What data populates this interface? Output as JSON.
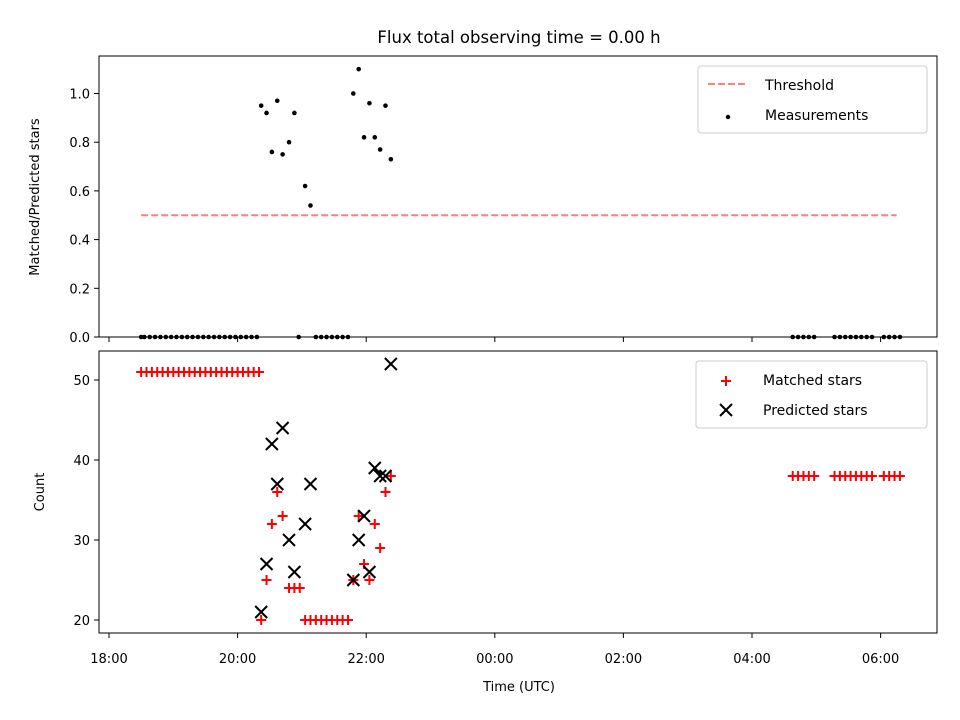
{
  "chart_data": [
    {
      "type": "scatter",
      "title": "Flux total observing time = 0.00 h",
      "xlabel": "",
      "ylabel": "Matched/Predicted stars",
      "ylim": [
        0,
        1.15
      ],
      "xlim": [
        "18:00",
        "06:50"
      ],
      "yticks": [
        "0.0",
        "0.2",
        "0.4",
        "0.6",
        "0.8",
        "1.0"
      ],
      "grid": false,
      "legend_position": "top-right",
      "legend": [
        "Threshold",
        "Measurements"
      ],
      "threshold": {
        "name": "Threshold",
        "y": 0.5,
        "x_start": "18:30",
        "x_end": "06:15",
        "color": "#ff7f7f"
      },
      "series": [
        {
          "name": "Measurements",
          "color": "#000000",
          "points": [
            [
              "18:30",
              0
            ],
            [
              "18:33",
              0
            ],
            [
              "18:38",
              0
            ],
            [
              "18:43",
              0
            ],
            [
              "18:48",
              0
            ],
            [
              "18:53",
              0
            ],
            [
              "18:58",
              0
            ],
            [
              "19:03",
              0
            ],
            [
              "19:08",
              0
            ],
            [
              "19:13",
              0
            ],
            [
              "19:18",
              0
            ],
            [
              "19:23",
              0
            ],
            [
              "19:28",
              0
            ],
            [
              "19:33",
              0
            ],
            [
              "19:38",
              0
            ],
            [
              "19:43",
              0
            ],
            [
              "19:48",
              0
            ],
            [
              "19:53",
              0
            ],
            [
              "19:58",
              0
            ],
            [
              "20:03",
              0
            ],
            [
              "20:08",
              0
            ],
            [
              "20:13",
              0
            ],
            [
              "20:18",
              0
            ],
            [
              "20:22",
              0.95
            ],
            [
              "20:27",
              0.92
            ],
            [
              "20:32",
              0.76
            ],
            [
              "20:37",
              0.97
            ],
            [
              "20:42",
              0.75
            ],
            [
              "20:48",
              0.8
            ],
            [
              "20:53",
              0.92
            ],
            [
              "20:57",
              0
            ],
            [
              "21:03",
              0.62
            ],
            [
              "21:08",
              0.54
            ],
            [
              "21:13",
              0
            ],
            [
              "21:18",
              0
            ],
            [
              "21:23",
              0
            ],
            [
              "21:28",
              0
            ],
            [
              "21:33",
              0
            ],
            [
              "21:38",
              0
            ],
            [
              "21:43",
              0
            ],
            [
              "21:48",
              1.0
            ],
            [
              "21:53",
              1.1
            ],
            [
              "21:58",
              0.82
            ],
            [
              "22:03",
              0.96
            ],
            [
              "22:08",
              0.82
            ],
            [
              "22:13",
              0.77
            ],
            [
              "22:18",
              0.95
            ],
            [
              "22:23",
              0.73
            ],
            [
              "04:38",
              0
            ],
            [
              "04:43",
              0
            ],
            [
              "04:48",
              0
            ],
            [
              "04:53",
              0
            ],
            [
              "04:58",
              0
            ],
            [
              "05:17",
              0
            ],
            [
              "05:22",
              0
            ],
            [
              "05:27",
              0
            ],
            [
              "05:32",
              0
            ],
            [
              "05:37",
              0
            ],
            [
              "05:42",
              0
            ],
            [
              "05:47",
              0
            ],
            [
              "05:52",
              0
            ],
            [
              "06:03",
              0
            ],
            [
              "06:08",
              0
            ],
            [
              "06:13",
              0
            ],
            [
              "06:18",
              0
            ]
          ]
        }
      ]
    },
    {
      "type": "scatter",
      "title": "",
      "xlabel": "Time (UTC)",
      "ylabel": "Count",
      "ylim": [
        18.5,
        53
      ],
      "xlim": [
        "18:00",
        "06:50"
      ],
      "xticks": [
        "18:00",
        "20:00",
        "22:00",
        "00:00",
        "02:00",
        "04:00",
        "06:00"
      ],
      "yticks": [
        "20",
        "30",
        "40",
        "50"
      ],
      "grid": false,
      "legend_position": "top-right",
      "legend": [
        "Matched stars",
        "Predicted stars"
      ],
      "series": [
        {
          "name": "Matched stars",
          "color": "#ff0000",
          "marker": "plus",
          "points": [
            [
              "18:30",
              51
            ],
            [
              "18:35",
              51
            ],
            [
              "18:40",
              51
            ],
            [
              "18:45",
              51
            ],
            [
              "18:50",
              51
            ],
            [
              "18:55",
              51
            ],
            [
              "19:00",
              51
            ],
            [
              "19:05",
              51
            ],
            [
              "19:10",
              51
            ],
            [
              "19:15",
              51
            ],
            [
              "19:20",
              51
            ],
            [
              "19:25",
              51
            ],
            [
              "19:30",
              51
            ],
            [
              "19:35",
              51
            ],
            [
              "19:40",
              51
            ],
            [
              "19:45",
              51
            ],
            [
              "19:50",
              51
            ],
            [
              "19:55",
              51
            ],
            [
              "20:00",
              51
            ],
            [
              "20:05",
              51
            ],
            [
              "20:10",
              51
            ],
            [
              "20:15",
              51
            ],
            [
              "20:20",
              51
            ],
            [
              "20:22",
              20
            ],
            [
              "20:27",
              25
            ],
            [
              "20:32",
              32
            ],
            [
              "20:37",
              36
            ],
            [
              "20:42",
              33
            ],
            [
              "20:48",
              24
            ],
            [
              "20:53",
              24
            ],
            [
              "20:58",
              24
            ],
            [
              "21:03",
              20
            ],
            [
              "21:08",
              20
            ],
            [
              "21:13",
              20
            ],
            [
              "21:18",
              20
            ],
            [
              "21:23",
              20
            ],
            [
              "21:28",
              20
            ],
            [
              "21:33",
              20
            ],
            [
              "21:38",
              20
            ],
            [
              "21:43",
              20
            ],
            [
              "21:48",
              25
            ],
            [
              "21:53",
              33
            ],
            [
              "21:58",
              27
            ],
            [
              "22:03",
              25
            ],
            [
              "22:08",
              32
            ],
            [
              "22:13",
              29
            ],
            [
              "22:18",
              36
            ],
            [
              "22:23",
              38
            ],
            [
              "04:38",
              38
            ],
            [
              "04:43",
              38
            ],
            [
              "04:48",
              38
            ],
            [
              "04:53",
              38
            ],
            [
              "04:58",
              38
            ],
            [
              "05:17",
              38
            ],
            [
              "05:22",
              38
            ],
            [
              "05:27",
              38
            ],
            [
              "05:32",
              38
            ],
            [
              "05:37",
              38
            ],
            [
              "05:42",
              38
            ],
            [
              "05:47",
              38
            ],
            [
              "05:52",
              38
            ],
            [
              "06:03",
              38
            ],
            [
              "06:08",
              38
            ],
            [
              "06:13",
              38
            ],
            [
              "06:18",
              38
            ]
          ]
        },
        {
          "name": "Predicted stars",
          "color": "#000000",
          "marker": "x",
          "points": [
            [
              "20:22",
              21
            ],
            [
              "20:27",
              27
            ],
            [
              "20:32",
              42
            ],
            [
              "20:37",
              37
            ],
            [
              "20:42",
              44
            ],
            [
              "20:48",
              30
            ],
            [
              "20:53",
              26
            ],
            [
              "21:03",
              32
            ],
            [
              "21:08",
              37
            ],
            [
              "21:48",
              25
            ],
            [
              "21:53",
              30
            ],
            [
              "21:58",
              33
            ],
            [
              "22:03",
              26
            ],
            [
              "22:08",
              39
            ],
            [
              "22:13",
              38
            ],
            [
              "22:18",
              38
            ],
            [
              "22:23",
              52
            ]
          ]
        }
      ]
    }
  ]
}
